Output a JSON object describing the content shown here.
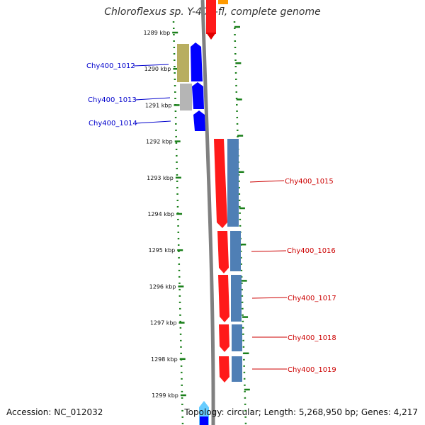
{
  "title": "Chloroflexus sp. Y-400-fl, complete genome",
  "footer": {
    "accession": "Accession: NC_012032",
    "summary": "Topology: circular; Length: 5,268,950 bp; Genes: 4,217"
  },
  "colors": {
    "forward_label": "#0000cc",
    "reverse_label": "#cc0000",
    "tick": "#1a7f1a",
    "backbone": "#808080"
  },
  "ticks": [
    "1289 kbp",
    "1290 kbp",
    "1291 kbp",
    "1292 kbp",
    "1293 kbp",
    "1294 kbp",
    "1295 kbp",
    "1296 kbp",
    "1297 kbp",
    "1298 kbp",
    "1299 kbp"
  ],
  "left_genes": [
    {
      "label": "Chy400_1012"
    },
    {
      "label": "Chy400_1013"
    },
    {
      "label": "Chy400_1014"
    }
  ],
  "right_genes": [
    {
      "label": "Chy400_1015"
    },
    {
      "label": "Chy400_1016"
    },
    {
      "label": "Chy400_1017"
    },
    {
      "label": "Chy400_1018"
    },
    {
      "label": "Chy400_1019"
    }
  ]
}
